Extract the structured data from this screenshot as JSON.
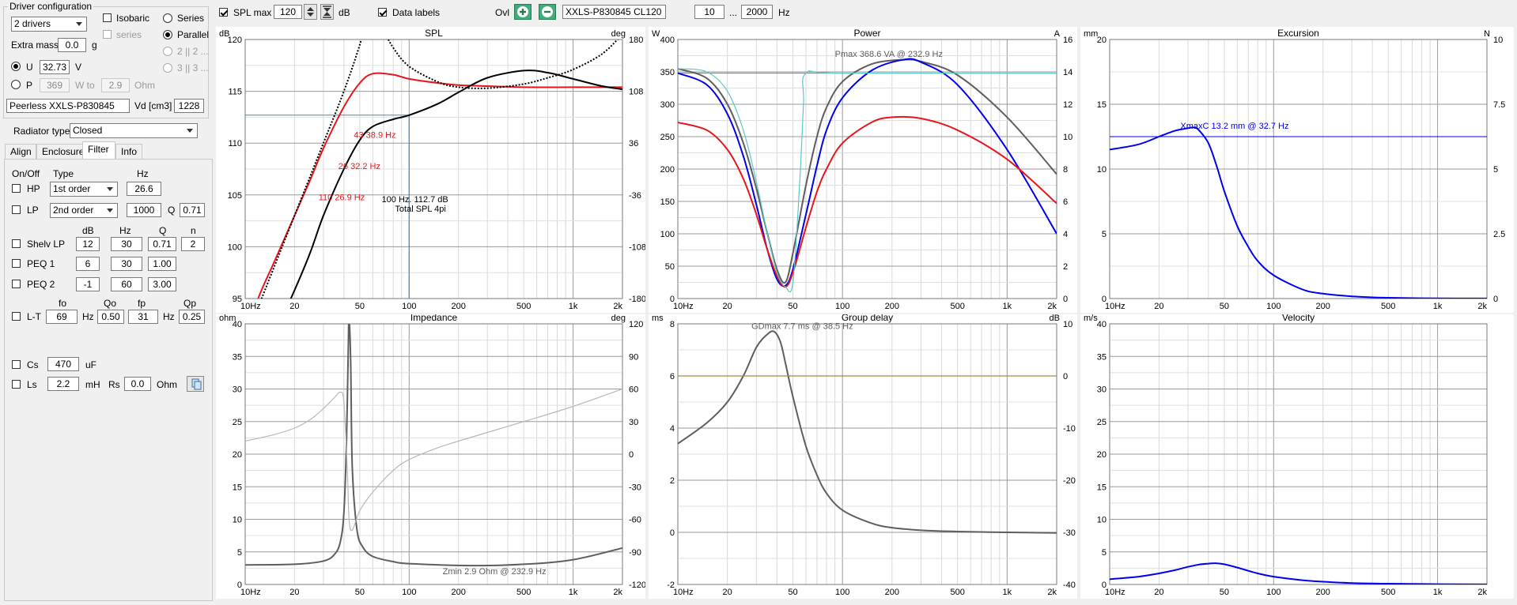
{
  "driver_config": {
    "title": "Driver configuration",
    "drivers_select": "2 drivers",
    "isobaric_label": "Isobaric",
    "series_sub_label": "series",
    "series_label": "Series",
    "parallel_label": "Parallel",
    "opt_2p2": "2 || 2 ...",
    "opt_3p3": "3 || 3 ...",
    "extra_mass_label": "Extra mass",
    "extra_mass_value": "0.0",
    "extra_mass_unit": "g",
    "u_label": "U",
    "u_value": "32.73",
    "u_unit": "V",
    "p_label": "P",
    "p_value": "369",
    "p_unit": "W to",
    "ohm_value": "2.9",
    "ohm_unit": "Ohm",
    "driver_name": "Peerless XXLS-P830845",
    "vd_label": "Vd [cm3]",
    "vd_value": "1228"
  },
  "radiator": {
    "label": "Radiator type",
    "value": "Closed"
  },
  "tabs": [
    "Align",
    "Enclosure",
    "Filter",
    "Info"
  ],
  "filter": {
    "onoff_header": "On/Off",
    "type_header": "Type",
    "hz_header": "Hz",
    "hp": {
      "label": "HP",
      "type": "1st order",
      "hz": "26.6"
    },
    "lp": {
      "label": "LP",
      "type": "2nd order",
      "hz": "1000",
      "q_label": "Q",
      "q": "0.71"
    },
    "col_db": "dB",
    "col_hz": "Hz",
    "col_q": "Q",
    "col_n": "n",
    "shelv": {
      "label": "Shelv LP",
      "db": "12",
      "hz": "30",
      "q": "0.71",
      "n": "2"
    },
    "peq1": {
      "label": "PEQ 1",
      "db": "6",
      "hz": "30",
      "q": "1.00"
    },
    "peq2": {
      "label": "PEQ 2",
      "db": "-1",
      "hz": "60",
      "q": "3.00"
    },
    "col_fo": "fo",
    "col_qo": "Qo",
    "col_fp": "fp",
    "col_qp": "Qp",
    "lt": {
      "label": "L-T",
      "fo": "69",
      "fo_unit": "Hz",
      "qo": "0.50",
      "fp": "31",
      "fp_unit": "Hz",
      "qp": "0.25"
    },
    "cs": {
      "label": "Cs",
      "value": "470",
      "unit": "uF"
    },
    "ls": {
      "label": "Ls",
      "value": "2.2",
      "unit": "mH",
      "rs_label": "Rs",
      "rs_value": "0.0",
      "rs_unit": "Ohm"
    }
  },
  "toolbar": {
    "spl_max_label": "SPL max",
    "spl_max_value": "120",
    "db_unit": "dB",
    "data_labels": "Data labels",
    "ovl_label": "Ovl",
    "ovl_name": "XXLS-P830845 CL120",
    "freq_from": "10",
    "freq_sep": "...",
    "freq_to": "2000",
    "hz_unit": "Hz"
  },
  "colors": {
    "red": "#e8161b",
    "black": "#000000",
    "blue": "#0000f0",
    "gray": "#5e5e5e",
    "cyan": "#5ac8c8",
    "lightgray": "#b8b8b8",
    "olive": "#a08a3c",
    "steel": "#3c8ac8"
  },
  "chart_data": [
    {
      "type": "line",
      "title": "SPL",
      "ylabel": "dB",
      "y2label": "deg",
      "ylim": [
        95,
        120
      ],
      "y2lim": [
        -180,
        180
      ],
      "xscale": "log",
      "xlim": [
        10,
        2000
      ],
      "yticks": [
        "120",
        "115",
        "110",
        "105",
        "100",
        "95"
      ],
      "y2ticks": [
        "180",
        "108",
        "36",
        "-36",
        "-108",
        "-180"
      ],
      "xticks": [
        "10Hz",
        "20",
        "50",
        "100",
        "200",
        "500",
        "1k",
        "2k"
      ],
      "series": [
        {
          "color": "red",
          "x": [
            10,
            12,
            15,
            20,
            25,
            30,
            40,
            50,
            60,
            80,
            100,
            150,
            200,
            300,
            500,
            1000,
            2000
          ],
          "y": [
            91,
            95,
            98.5,
            103,
            106.5,
            109.5,
            113.5,
            115.8,
            116.7,
            116.6,
            116.2,
            115.8,
            115.6,
            115.5,
            115.4,
            115.4,
            115.4
          ]
        },
        {
          "color": "black",
          "x": [
            10,
            20,
            25,
            30,
            40,
            50,
            60,
            80,
            100,
            150,
            200,
            300,
            500,
            700,
            1000,
            1500,
            2000
          ],
          "y": [
            85,
            95.8,
            99.5,
            103,
            107.5,
            110.3,
            111.6,
            112.3,
            112.7,
            113.8,
            114.9,
            116.3,
            117.0,
            116.8,
            116.2,
            115.5,
            115.2
          ]
        },
        {
          "color": "black",
          "dashed": true,
          "x": [
            10,
            20,
            30,
            40,
            50,
            60,
            70,
            80,
            100,
            150,
            200,
            300,
            500,
            700,
            1000,
            1500,
            2000
          ],
          "y": [
            91,
            103,
            110,
            115,
            119.5,
            124,
            121,
            119.2,
            117.4,
            115.9,
            115.4,
            115.3,
            115.7,
            116.3,
            117.1,
            118.6,
            120.5
          ]
        }
      ],
      "vline_x": 100,
      "hline_y": 112.7,
      "annotations": [
        "43 38.9 Hz",
        "26 32.2 Hz",
        "110 26.9 Hz",
        "100 Hz. 112.7 dB",
        "Total SPL 4pi"
      ]
    },
    {
      "type": "line",
      "title": "Power",
      "ylabel": "W",
      "y2label": "A",
      "ylim": [
        0,
        400
      ],
      "y2lim": [
        0,
        16
      ],
      "xscale": "log",
      "xlim": [
        10,
        2000
      ],
      "yticks": [
        "400",
        "350",
        "300",
        "250",
        "200",
        "150",
        "100",
        "50",
        "0"
      ],
      "y2ticks": [
        "16",
        "14",
        "12",
        "10",
        "8",
        "6",
        "4",
        "2",
        "0"
      ],
      "xticks": [
        "10Hz",
        "20",
        "50",
        "100",
        "200",
        "500",
        "1k",
        "2k"
      ],
      "series": [
        {
          "color": "gray",
          "x": [
            10,
            15,
            20,
            25,
            30,
            35,
            40,
            45,
            50,
            60,
            70,
            80,
            100,
            150,
            232.9,
            300,
            500,
            1000,
            2000
          ],
          "y": [
            355,
            340,
            300,
            240,
            170,
            100,
            45,
            25,
            70,
            175,
            250,
            295,
            335,
            362,
            368.6,
            366,
            345,
            280,
            192
          ]
        },
        {
          "color": "blue",
          "x": [
            10,
            15,
            20,
            25,
            30,
            35,
            40,
            45,
            50,
            60,
            70,
            80,
            100,
            150,
            232.9,
            300,
            500,
            1000,
            2000
          ],
          "y": [
            348,
            330,
            285,
            220,
            145,
            75,
            30,
            20,
            45,
            130,
            205,
            260,
            310,
            352,
            368.6,
            365,
            330,
            230,
            100
          ]
        },
        {
          "color": "red",
          "x": [
            10,
            15,
            20,
            25,
            30,
            35,
            40,
            45,
            50,
            60,
            70,
            80,
            100,
            150,
            200,
            300,
            500,
            1000,
            2000
          ],
          "y": [
            272,
            260,
            230,
            185,
            130,
            75,
            35,
            18,
            40,
            110,
            165,
            200,
            240,
            272,
            280,
            278,
            260,
            215,
            147
          ]
        },
        {
          "color": "cyan",
          "x": [
            10,
            15,
            20,
            25,
            30,
            35,
            40,
            45,
            50,
            55,
            58,
            60,
            100,
            2000
          ],
          "y": [
            355,
            350,
            320,
            260,
            180,
            100,
            40,
            18,
            25,
            180,
            300,
            348,
            348,
            348
          ]
        }
      ],
      "hline_y": 348,
      "annotations": [
        "Pmax 368.6 VA @ 232.9 Hz"
      ]
    },
    {
      "type": "line",
      "title": "Excursion",
      "ylabel": "mm",
      "y2label": "N",
      "ylim": [
        0,
        20
      ],
      "y2lim": [
        0,
        10
      ],
      "xscale": "log",
      "xlim": [
        10,
        2000
      ],
      "yticks": [
        "20",
        "15",
        "10",
        "5",
        "0"
      ],
      "y2ticks": [
        "10",
        "7.5",
        "5",
        "2.5",
        "0"
      ],
      "xticks": [
        "10Hz",
        "20",
        "50",
        "100",
        "200",
        "500",
        "1k",
        "2k"
      ],
      "series": [
        {
          "color": "blue",
          "x": [
            10,
            15,
            20,
            25,
            30,
            32.7,
            35,
            40,
            45,
            50,
            60,
            70,
            80,
            100,
            150,
            200,
            300,
            500,
            1000,
            2000
          ],
          "y": [
            11.5,
            11.9,
            12.5,
            12.95,
            13.15,
            13.2,
            13.0,
            12.0,
            10.2,
            8.3,
            5.6,
            4.0,
            2.9,
            1.8,
            0.7,
            0.38,
            0.17,
            0.06,
            0.015,
            0.004
          ]
        }
      ],
      "hline_y": 12.5,
      "annotations": [
        "XmaxC 13.2 mm @ 32.7 Hz"
      ]
    },
    {
      "type": "line",
      "title": "Impedance",
      "ylabel": "ohm",
      "y2label": "deg",
      "ylim": [
        0,
        40
      ],
      "y2lim": [
        -120,
        120
      ],
      "xscale": "log",
      "xlim": [
        10,
        2000
      ],
      "yticks": [
        "40",
        "35",
        "30",
        "25",
        "20",
        "15",
        "10",
        "5",
        "0"
      ],
      "y2ticks": [
        "120",
        "90",
        "60",
        "30",
        "0",
        "-30",
        "-60",
        "-90",
        "-120"
      ],
      "xticks": [
        "10Hz",
        "20",
        "50",
        "100",
        "200",
        "500",
        "1k",
        "2k"
      ],
      "series": [
        {
          "color": "gray",
          "x": [
            10,
            20,
            30,
            35,
            38,
            40,
            41.5,
            42.5,
            43,
            44,
            45,
            48,
            52,
            60,
            80,
            100,
            232.9,
            500,
            1000,
            2000
          ],
          "y": [
            3.0,
            3.1,
            3.6,
            4.6,
            6.5,
            11,
            22,
            36,
            41,
            34,
            18,
            8.5,
            5.8,
            4.3,
            3.5,
            3.2,
            2.9,
            3.1,
            3.8,
            5.6
          ]
        },
        {
          "color": "lightgray",
          "x": [
            10,
            15,
            20,
            25,
            30,
            35,
            38,
            40,
            42,
            43,
            45,
            50,
            60,
            80,
            100,
            150,
            200,
            300,
            500,
            1000,
            2000
          ],
          "y2": [
            12,
            18,
            24,
            32,
            42,
            52,
            57,
            48,
            -15,
            -60,
            -70,
            -52,
            -35,
            -15,
            -5,
            6,
            12,
            20,
            30,
            44,
            60
          ]
        }
      ],
      "annotations": [
        "Zmin 2.9 Ohm @ 232.9 Hz"
      ]
    },
    {
      "type": "line",
      "title": "Group delay",
      "ylabel": "ms",
      "y2label": "dB",
      "ylim": [
        -2,
        8
      ],
      "y2lim": [
        -40,
        10
      ],
      "xscale": "log",
      "xlim": [
        10,
        2000
      ],
      "yticks": [
        "8",
        "6",
        "4",
        "2",
        "0",
        "-2"
      ],
      "y2ticks": [
        "10",
        "0",
        "-10",
        "-20",
        "-30",
        "-40"
      ],
      "xticks": [
        "10Hz",
        "20",
        "50",
        "100",
        "200",
        "500",
        "1k",
        "2k"
      ],
      "series": [
        {
          "color": "gray",
          "x": [
            10,
            15,
            20,
            25,
            30,
            35,
            38.5,
            42,
            45,
            50,
            60,
            70,
            80,
            100,
            150,
            200,
            300,
            500,
            1000,
            2000
          ],
          "y": [
            3.4,
            4.2,
            5.0,
            6.0,
            7.1,
            7.6,
            7.7,
            7.3,
            6.5,
            5.2,
            3.3,
            2.2,
            1.5,
            0.85,
            0.35,
            0.18,
            0.08,
            0.03,
            0.0,
            -0.02
          ]
        },
        {
          "color": "olive",
          "x": [
            10,
            2000
          ],
          "y": [
            6.0,
            6.0
          ]
        }
      ],
      "annotations": [
        "GDmax 7.7 ms @ 38.5 Hz"
      ]
    },
    {
      "type": "line",
      "title": "Velocity",
      "ylabel": "m/s",
      "ylim": [
        0,
        40
      ],
      "xscale": "log",
      "xlim": [
        10,
        2000
      ],
      "yticks": [
        "40",
        "35",
        "30",
        "25",
        "20",
        "15",
        "10",
        "5",
        "0"
      ],
      "xticks": [
        "10Hz",
        "20",
        "50",
        "100",
        "200",
        "500",
        "1k",
        "2k"
      ],
      "series": [
        {
          "color": "blue",
          "x": [
            10,
            15,
            20,
            25,
            30,
            35,
            40,
            45,
            50,
            60,
            70,
            80,
            100,
            150,
            200,
            300,
            500,
            1000,
            2000
          ],
          "y": [
            0.8,
            1.2,
            1.7,
            2.2,
            2.7,
            3.05,
            3.2,
            3.25,
            3.1,
            2.6,
            2.1,
            1.7,
            1.2,
            0.65,
            0.42,
            0.22,
            0.12,
            0.05,
            0.015
          ]
        }
      ]
    }
  ]
}
